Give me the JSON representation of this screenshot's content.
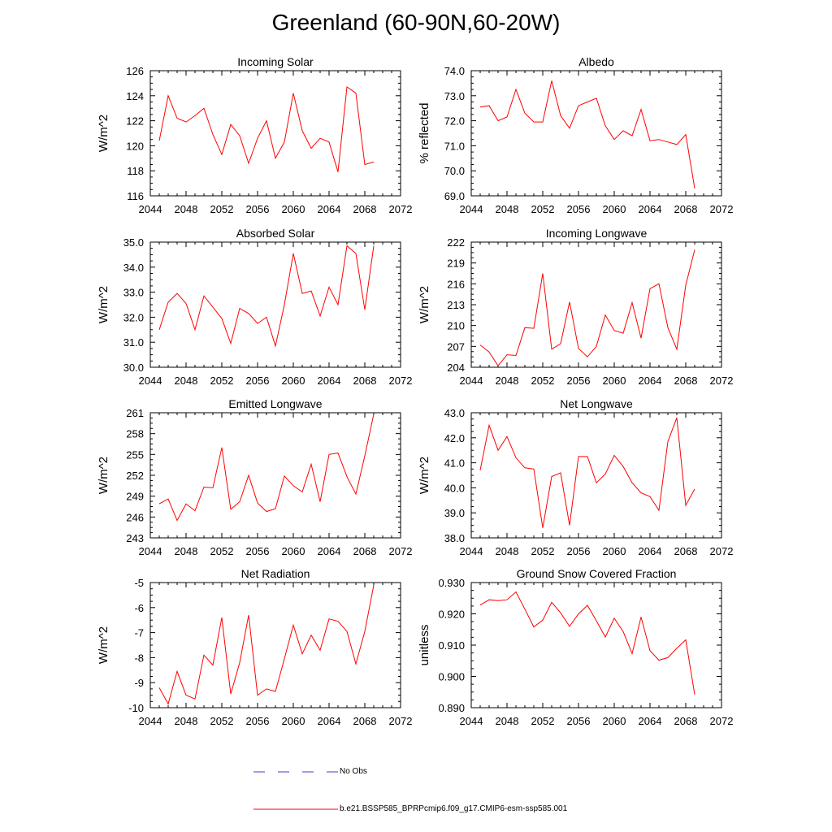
{
  "title": "Greenland (60-90N,60-20W)",
  "legend": {
    "obs_label": "No Obs",
    "obs_color": "#3b3bd6",
    "model_label": "b.e21.BSSP585_BPRPcmip6.f09_g17.CMIP6-esm-ssp585.001",
    "model_color": "#ff0000"
  },
  "chart_data": [
    {
      "type": "line",
      "title": "Incoming Solar",
      "ylabel": "W/m^2",
      "xlim": [
        2044,
        2072
      ],
      "xticks": [
        2044,
        2048,
        2052,
        2056,
        2060,
        2064,
        2068,
        2072
      ],
      "ylim": [
        116,
        126
      ],
      "yticks": [
        "116",
        "118",
        "120",
        "122",
        "124",
        "126"
      ],
      "x": [
        2045,
        2046,
        2047,
        2048,
        2049,
        2050,
        2051,
        2052,
        2053,
        2054,
        2055,
        2056,
        2057,
        2058,
        2059,
        2060,
        2061,
        2062,
        2063,
        2064,
        2065,
        2066,
        2067,
        2068,
        2069
      ],
      "series": [
        {
          "values": [
            120.4,
            124.0,
            122.2,
            121.9,
            122.4,
            123.0,
            120.9,
            119.3,
            121.7,
            120.8,
            118.6,
            120.6,
            122.0,
            119.0,
            120.3,
            124.2,
            121.2,
            119.8,
            120.6,
            120.3,
            117.9,
            124.7,
            124.2,
            118.5,
            118.7
          ]
        }
      ]
    },
    {
      "type": "line",
      "title": "Albedo",
      "ylabel": "% reflected",
      "xlim": [
        2044,
        2072
      ],
      "xticks": [
        2044,
        2048,
        2052,
        2056,
        2060,
        2064,
        2068,
        2072
      ],
      "ylim": [
        69.0,
        74.0
      ],
      "yticks": [
        "69.0",
        "70.0",
        "71.0",
        "72.0",
        "73.0",
        "74.0"
      ],
      "x": [
        2045,
        2046,
        2047,
        2048,
        2049,
        2050,
        2051,
        2052,
        2053,
        2054,
        2055,
        2056,
        2057,
        2058,
        2059,
        2060,
        2061,
        2062,
        2063,
        2064,
        2065,
        2066,
        2067,
        2068,
        2069
      ],
      "series": [
        {
          "values": [
            72.55,
            72.6,
            72.0,
            72.15,
            73.25,
            72.3,
            71.95,
            71.95,
            73.6,
            72.2,
            71.7,
            72.6,
            72.75,
            72.9,
            71.8,
            71.25,
            71.6,
            71.4,
            72.45,
            71.2,
            71.25,
            71.15,
            71.05,
            71.45,
            69.3
          ]
        }
      ]
    },
    {
      "type": "line",
      "title": "Absorbed Solar",
      "ylabel": "W/m^2",
      "xlim": [
        2044,
        2072
      ],
      "xticks": [
        2044,
        2048,
        2052,
        2056,
        2060,
        2064,
        2068,
        2072
      ],
      "ylim": [
        30.0,
        35.0
      ],
      "yticks": [
        "30.0",
        "31.0",
        "32.0",
        "33.0",
        "34.0",
        "35.0"
      ],
      "x": [
        2045,
        2046,
        2047,
        2048,
        2049,
        2050,
        2051,
        2052,
        2053,
        2054,
        2055,
        2056,
        2057,
        2058,
        2059,
        2060,
        2061,
        2062,
        2063,
        2064,
        2065,
        2066,
        2067,
        2068,
        2069
      ],
      "series": [
        {
          "values": [
            31.5,
            32.6,
            32.95,
            32.55,
            31.5,
            32.85,
            32.4,
            31.95,
            30.95,
            32.35,
            32.15,
            31.75,
            32.0,
            30.85,
            32.5,
            34.55,
            32.95,
            33.05,
            32.05,
            33.2,
            32.5,
            34.85,
            34.55,
            32.3,
            34.85
          ]
        }
      ]
    },
    {
      "type": "line",
      "title": "Incoming Longwave",
      "ylabel": "W/m^2",
      "xlim": [
        2044,
        2072
      ],
      "xticks": [
        2044,
        2048,
        2052,
        2056,
        2060,
        2064,
        2068,
        2072
      ],
      "ylim": [
        204,
        222
      ],
      "yticks": [
        "204",
        "207",
        "210",
        "213",
        "216",
        "219",
        "222"
      ],
      "x": [
        2045,
        2046,
        2047,
        2048,
        2049,
        2050,
        2051,
        2052,
        2053,
        2054,
        2055,
        2056,
        2057,
        2058,
        2059,
        2060,
        2061,
        2062,
        2063,
        2064,
        2065,
        2066,
        2067,
        2068,
        2069
      ],
      "series": [
        {
          "values": [
            207.2,
            206.2,
            204.2,
            205.8,
            205.7,
            209.7,
            209.6,
            217.5,
            206.6,
            207.4,
            213.4,
            206.7,
            205.5,
            207.0,
            211.5,
            209.3,
            208.9,
            213.3,
            208.2,
            215.3,
            216.0,
            209.7,
            206.6,
            215.8,
            220.9
          ]
        }
      ]
    },
    {
      "type": "line",
      "title": "Emitted Longwave",
      "ylabel": "W/m^2",
      "xlim": [
        2044,
        2072
      ],
      "xticks": [
        2044,
        2048,
        2052,
        2056,
        2060,
        2064,
        2068,
        2072
      ],
      "ylim": [
        243,
        261
      ],
      "yticks": [
        "243",
        "246",
        "249",
        "252",
        "255",
        "258",
        "261"
      ],
      "x": [
        2045,
        2046,
        2047,
        2048,
        2049,
        2050,
        2051,
        2052,
        2053,
        2054,
        2055,
        2056,
        2057,
        2058,
        2059,
        2060,
        2061,
        2062,
        2063,
        2064,
        2065,
        2066,
        2067,
        2068,
        2069
      ],
      "series": [
        {
          "values": [
            247.9,
            248.6,
            245.5,
            247.9,
            246.9,
            250.3,
            250.2,
            256.0,
            247.1,
            248.2,
            252.0,
            248.0,
            246.8,
            247.2,
            251.9,
            250.5,
            249.6,
            253.6,
            248.2,
            255.0,
            255.2,
            251.8,
            249.3,
            254.8,
            260.8
          ]
        }
      ]
    },
    {
      "type": "line",
      "title": "Net Longwave",
      "ylabel": "W/m^2",
      "xlim": [
        2044,
        2072
      ],
      "xticks": [
        2044,
        2048,
        2052,
        2056,
        2060,
        2064,
        2068,
        2072
      ],
      "ylim": [
        38.0,
        43.0
      ],
      "yticks": [
        "38.0",
        "39.0",
        "40.0",
        "41.0",
        "42.0",
        "43.0"
      ],
      "x": [
        2045,
        2046,
        2047,
        2048,
        2049,
        2050,
        2051,
        2052,
        2053,
        2054,
        2055,
        2056,
        2057,
        2058,
        2059,
        2060,
        2061,
        2062,
        2063,
        2064,
        2065,
        2066,
        2067,
        2068,
        2069
      ],
      "series": [
        {
          "values": [
            40.7,
            42.5,
            41.5,
            42.05,
            41.2,
            40.8,
            40.75,
            38.4,
            40.45,
            40.6,
            38.5,
            41.25,
            41.25,
            40.2,
            40.55,
            41.3,
            40.85,
            40.2,
            39.8,
            39.65,
            39.1,
            41.85,
            42.8,
            39.3,
            39.95
          ]
        }
      ]
    },
    {
      "type": "line",
      "title": "Net Radiation",
      "ylabel": "W/m^2",
      "xlim": [
        2044,
        2072
      ],
      "xticks": [
        2044,
        2048,
        2052,
        2056,
        2060,
        2064,
        2068,
        2072
      ],
      "ylim": [
        -10,
        -5
      ],
      "yticks": [
        "-10",
        "-9",
        "-8",
        "-7",
        "-6",
        "-5"
      ],
      "x": [
        2045,
        2046,
        2047,
        2048,
        2049,
        2050,
        2051,
        2052,
        2053,
        2054,
        2055,
        2056,
        2057,
        2058,
        2059,
        2060,
        2061,
        2062,
        2063,
        2064,
        2065,
        2066,
        2067,
        2068,
        2069
      ],
      "series": [
        {
          "values": [
            -9.2,
            -9.85,
            -8.55,
            -9.5,
            -9.65,
            -7.9,
            -8.3,
            -6.4,
            -9.45,
            -8.2,
            -6.3,
            -9.5,
            -9.25,
            -9.35,
            -8.05,
            -6.7,
            -7.85,
            -7.1,
            -7.7,
            -6.45,
            -6.55,
            -6.95,
            -8.25,
            -6.95,
            -5.1
          ]
        }
      ]
    },
    {
      "type": "line",
      "title": "Ground Snow Covered Fraction",
      "ylabel": "unitless",
      "xlim": [
        2044,
        2072
      ],
      "xticks": [
        2044,
        2048,
        2052,
        2056,
        2060,
        2064,
        2068,
        2072
      ],
      "ylim": [
        0.89,
        0.93
      ],
      "yticks": [
        "0.890",
        "0.900",
        "0.910",
        "0.920",
        "0.930"
      ],
      "x": [
        2045,
        2046,
        2047,
        2048,
        2049,
        2050,
        2051,
        2052,
        2053,
        2054,
        2055,
        2056,
        2057,
        2058,
        2059,
        2060,
        2061,
        2062,
        2063,
        2064,
        2065,
        2066,
        2067,
        2068,
        2069
      ],
      "series": [
        {
          "values": [
            0.9228,
            0.9245,
            0.9242,
            0.9245,
            0.927,
            0.9215,
            0.9158,
            0.918,
            0.9237,
            0.9203,
            0.916,
            0.92,
            0.9227,
            0.9178,
            0.9126,
            0.9186,
            0.9143,
            0.9073,
            0.919,
            0.9082,
            0.9052,
            0.906,
            0.909,
            0.9117,
            0.8942
          ]
        }
      ]
    }
  ]
}
